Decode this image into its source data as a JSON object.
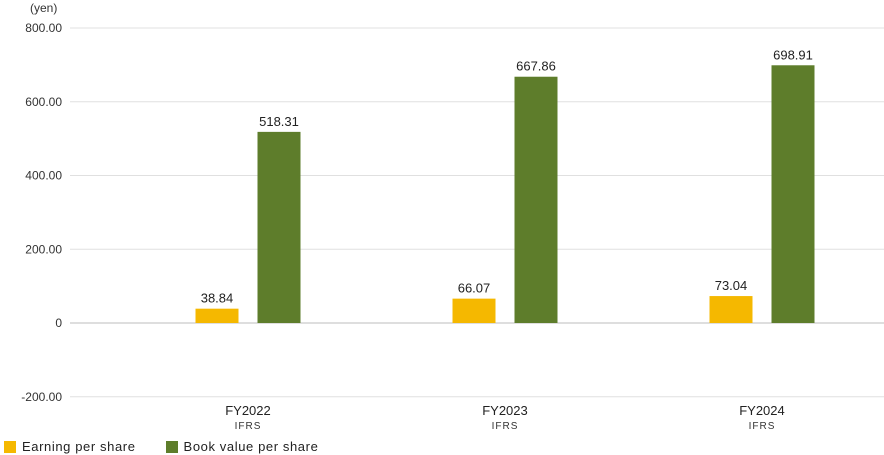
{
  "chart_data": {
    "type": "bar",
    "unit_label": "(yen)",
    "categories": [
      "FY2022",
      "FY2023",
      "FY2024"
    ],
    "category_sublabels": [
      "IFRS",
      "IFRS",
      "IFRS"
    ],
    "y_ticks": [
      {
        "value": 800,
        "label": "800.00"
      },
      {
        "value": 600,
        "label": "600.00"
      },
      {
        "value": 400,
        "label": "400.00"
      },
      {
        "value": 200,
        "label": "200.00"
      },
      {
        "value": 0,
        "label": "0"
      },
      {
        "value": -200,
        "label": "-200.00"
      }
    ],
    "ylim": [
      -200,
      800
    ],
    "grid": true,
    "legend_position": "bottom-left",
    "series": [
      {
        "name": "Earning per share",
        "color": "#f5b800",
        "values": [
          38.84,
          66.07,
          73.04
        ],
        "value_labels": [
          "38.84",
          "66.07",
          "73.04"
        ]
      },
      {
        "name": "Book value per share",
        "color": "#5e7d2b",
        "values": [
          518.31,
          667.86,
          698.91
        ],
        "value_labels": [
          "518.31",
          "667.86",
          "698.91"
        ]
      }
    ]
  }
}
